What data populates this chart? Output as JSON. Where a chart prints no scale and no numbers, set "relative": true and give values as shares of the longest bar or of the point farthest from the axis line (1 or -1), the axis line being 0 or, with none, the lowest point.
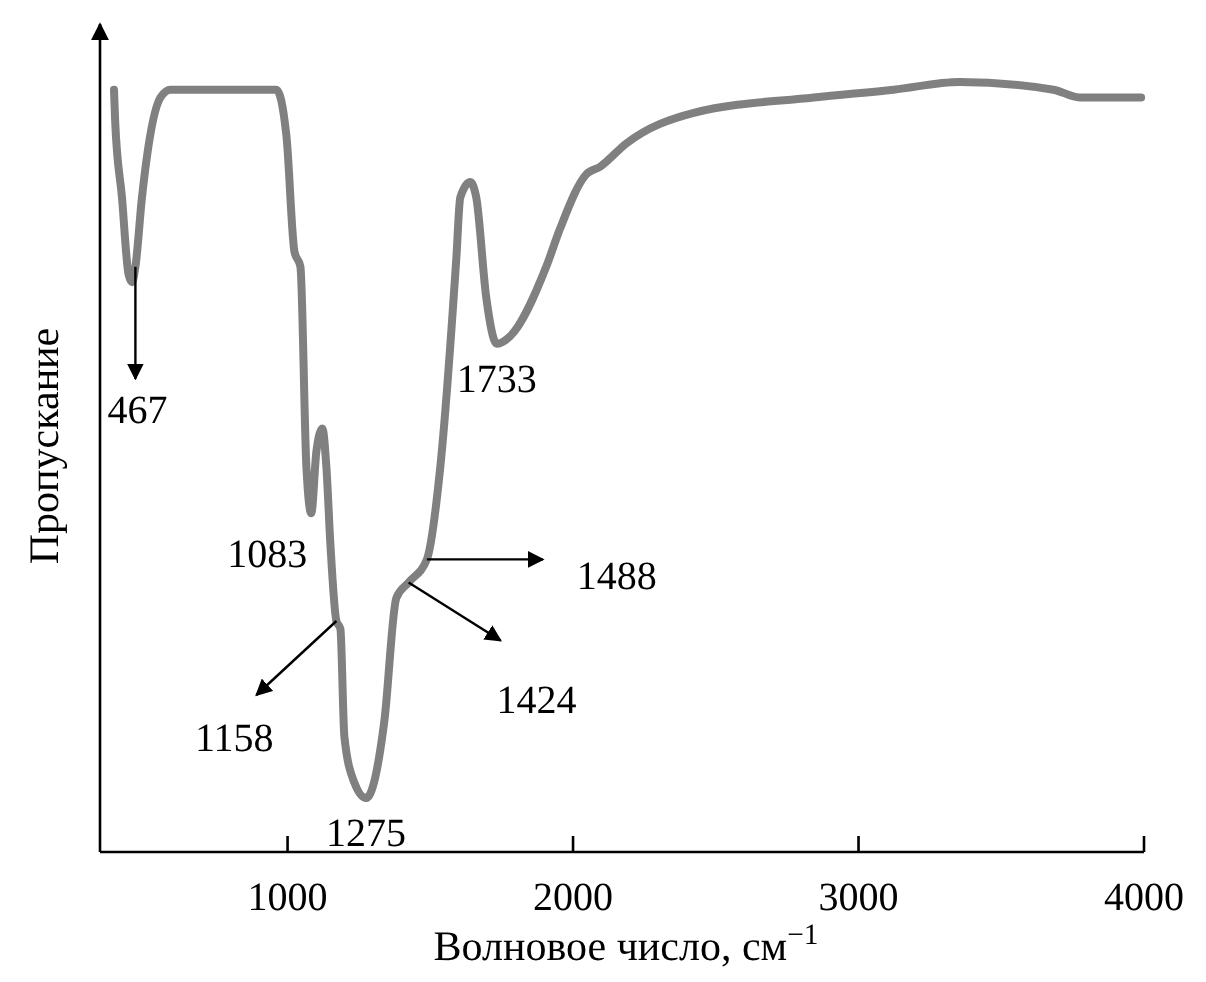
{
  "chart_data": {
    "type": "line",
    "relative": true,
    "xlabel": "Волновое число, см$^{−1}$",
    "ylabel": "Пропускание",
    "xlim": [
      343,
      4000
    ],
    "xticks": [
      1000,
      2000,
      3000,
      4000
    ],
    "tick_labels": "x",
    "grid": false,
    "marker": "none",
    "line_style": "solid",
    "series": [
      {
        "color": "#808080",
        "x": [
          392,
          396,
          420,
          443,
          455,
          467,
          490,
          555,
          590,
          961,
          996,
          1024,
          1045,
          1066,
          1083,
          1101,
          1122,
          1136,
          1150,
          1171,
          1185,
          1199,
          1234,
          1275,
          1339,
          1381,
          1424,
          1488,
          1535,
          1591,
          1605,
          1640,
          1661,
          1696,
          1733,
          1780,
          1906,
          1955,
          2046,
          2095,
          2186,
          2423,
          2843,
          3123,
          3354,
          3683,
          3774,
          3990
        ],
        "values": [
          0.99,
          0.95,
          0.85,
          0.75,
          0.74,
          0.76,
          0.85,
          0.98,
          0.99,
          0.99,
          0.93,
          0.78,
          0.76,
          0.5,
          0.44,
          0.52,
          0.55,
          0.5,
          0.4,
          0.3,
          0.29,
          0.15,
          0.09,
          0.07,
          0.17,
          0.33,
          0.35,
          0.38,
          0.5,
          0.77,
          0.85,
          0.87,
          0.85,
          0.72,
          0.66,
          0.67,
          0.76,
          0.81,
          0.88,
          0.89,
          0.92,
          0.96,
          0.98,
          0.99,
          1.0,
          0.99,
          0.98,
          0.98
        ]
      }
    ],
    "annotations": [
      {
        "text": "467",
        "x": 467,
        "y": 0.76
      },
      {
        "text": "1083",
        "x": 1083,
        "y": 0.44
      },
      {
        "text": "1158",
        "x": 1171,
        "y": 0.3
      },
      {
        "text": "1275",
        "x": 1275,
        "y": 0.07
      },
      {
        "text": "1424",
        "x": 1424,
        "y": 0.35
      },
      {
        "text": "1488",
        "x": 1488,
        "y": 0.38
      },
      {
        "text": "1733",
        "x": 1733,
        "y": 0.66
      }
    ]
  }
}
